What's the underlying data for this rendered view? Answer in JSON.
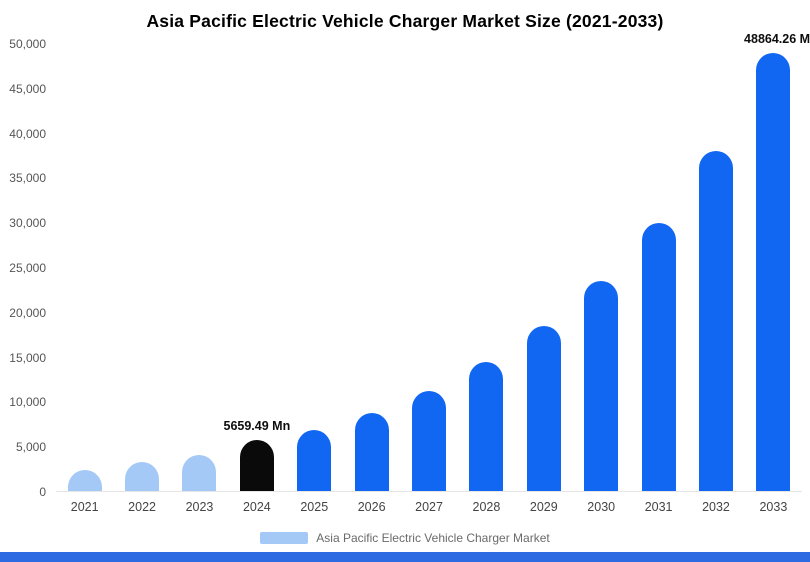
{
  "title": "Asia Pacific Electric Vehicle Charger Market Size (2021-2033)",
  "legend": {
    "label": "Asia Pacific Electric Vehicle Charger Market",
    "swatch_color": "#a4c9f7"
  },
  "colors": {
    "light_blue_bar": "#a4c9f7",
    "blue_bar": "#1267f2",
    "black_bar": "#0a0a0a",
    "footer_strip": "#2c6be2",
    "axis_text": "#555555"
  },
  "chart_data": {
    "type": "bar",
    "title": "Asia Pacific Electric Vehicle Charger Market Size (2021-2033)",
    "categories": [
      "2021",
      "2022",
      "2023",
      "2024",
      "2025",
      "2026",
      "2027",
      "2028",
      "2029",
      "2030",
      "2031",
      "2032",
      "2033"
    ],
    "values": [
      2400,
      3200,
      4000,
      5659.49,
      6800,
      8700,
      11200,
      14400,
      18400,
      23400,
      29900,
      38000,
      48864.26
    ],
    "bar_colors": [
      "#a4c9f7",
      "#a4c9f7",
      "#a4c9f7",
      "#0a0a0a",
      "#1267f2",
      "#1267f2",
      "#1267f2",
      "#1267f2",
      "#1267f2",
      "#1267f2",
      "#1267f2",
      "#1267f2",
      "#1267f2"
    ],
    "annotations": [
      {
        "index": 3,
        "text": "5659.49 Mn",
        "align": "center"
      },
      {
        "index": 12,
        "text": "48864.26 M",
        "align": "right"
      }
    ],
    "xlabel": "",
    "ylabel": "",
    "ylim": [
      0,
      50000
    ],
    "ytick_step": 5000,
    "ytick_labels": [
      "0",
      "5,000",
      "10,000",
      "15,000",
      "20,000",
      "25,000",
      "30,000",
      "35,000",
      "40,000",
      "45,000",
      "50,000"
    ],
    "grid": false,
    "legend_position": "bottom",
    "unit": "Mn"
  }
}
